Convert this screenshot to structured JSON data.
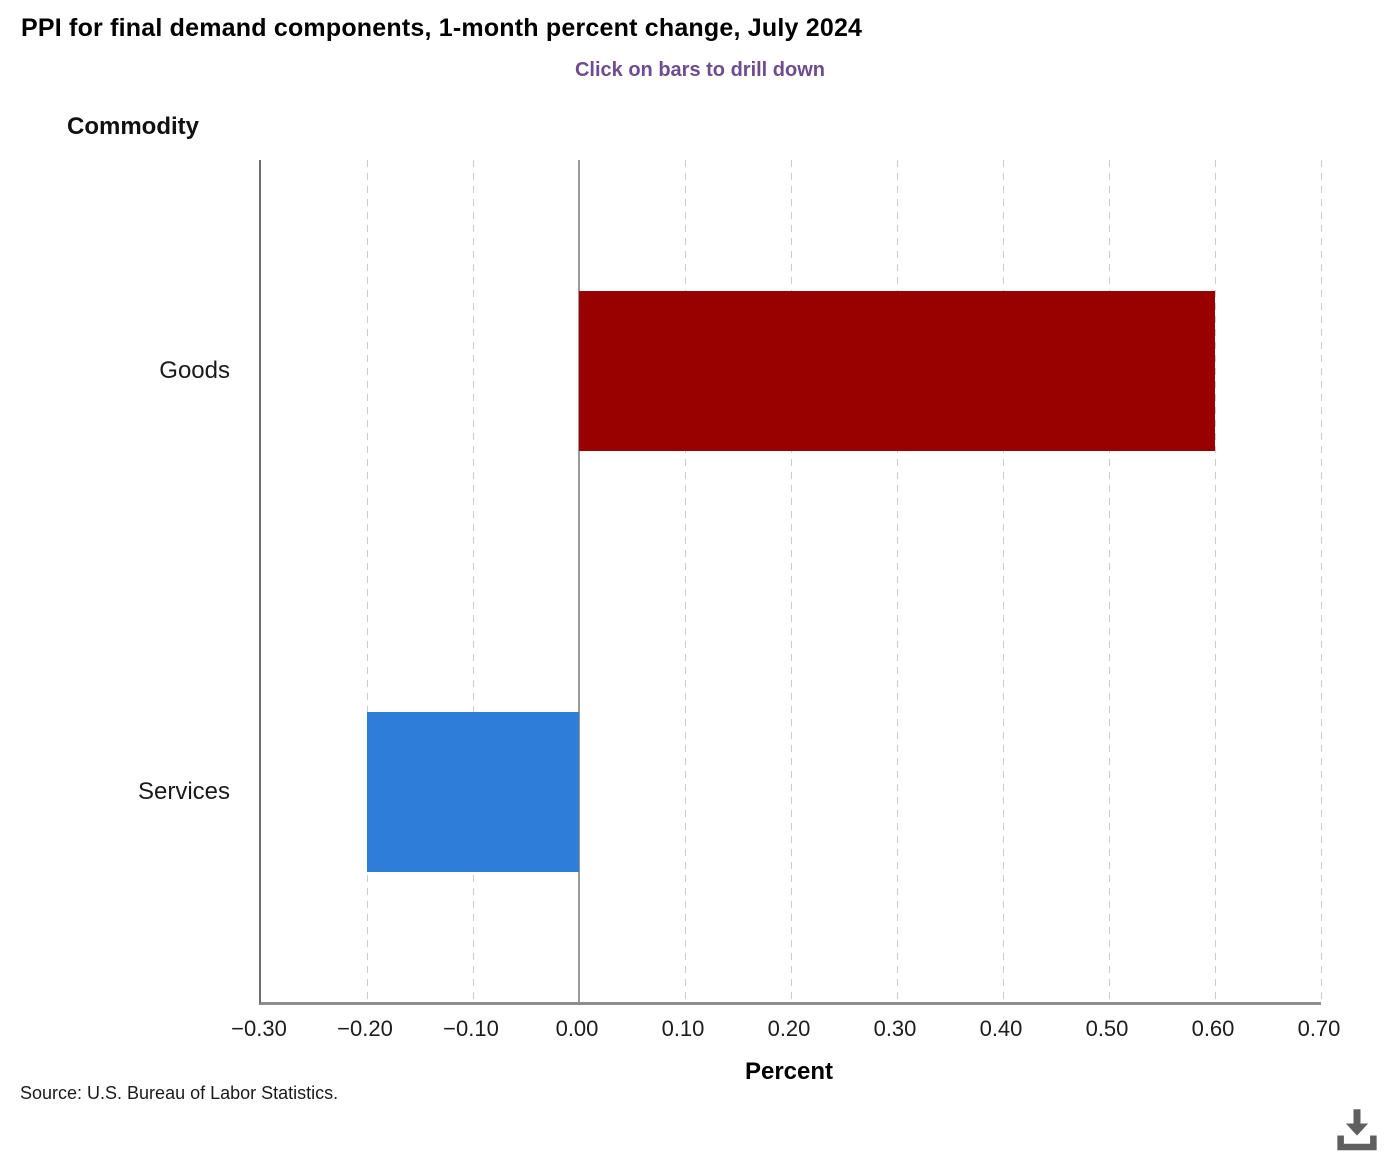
{
  "header": {
    "title": "PPI for final demand components, 1-month percent change, July 2024",
    "subtitle": "Click on bars to drill down"
  },
  "chart_data": {
    "type": "bar",
    "orientation": "horizontal",
    "title": "PPI for final demand components, 1-month percent change, July 2024",
    "subtitle": "Click on bars to drill down",
    "category_axis_label": "Commodity",
    "value_axis_label": "Percent",
    "categories": [
      "Goods",
      "Services"
    ],
    "values": [
      0.6,
      -0.2
    ],
    "bar_colors": [
      "#990000",
      "#2e7dd9"
    ],
    "xlim": [
      -0.3,
      0.7
    ],
    "ticks": [
      -0.3,
      -0.2,
      -0.1,
      0,
      0.1,
      0.2,
      0.3,
      0.4,
      0.5,
      0.6,
      0.7
    ],
    "tick_labels": [
      "−0.30",
      "−0.20",
      "−0.10",
      "0.00",
      "0.10",
      "0.20",
      "0.30",
      "0.40",
      "0.50",
      "0.60",
      "0.70"
    ],
    "grid": "vertical-dashed",
    "zero_line": true,
    "legend": "none"
  },
  "footer": {
    "source": "Source: U.S. Bureau of Labor Statistics.",
    "download_icon": "download-icon"
  },
  "colors": {
    "title_text": "#000000",
    "subtitle_text": "#6f4c8d",
    "goods_bar": "#990000",
    "services_bar": "#2e7dd9",
    "gridline": "#cccccc",
    "zero_line": "#9a9a9a",
    "y_axis_line": "#6f6f6f",
    "x_axis_line": "#8d8d8d",
    "download_icon": "#5f5f5f"
  }
}
